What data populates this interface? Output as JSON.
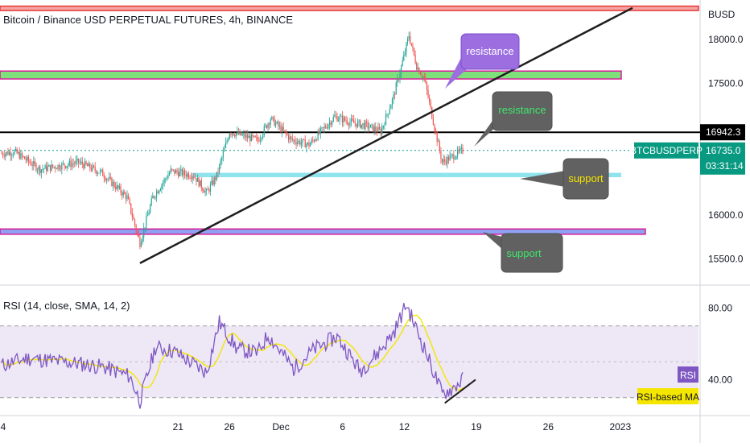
{
  "header": {
    "title": "Bitcoin / Binance USD PERPETUAL FUTURES, 4h, BINANCE"
  },
  "price_axis": {
    "currency": "BUSD",
    "ticks": [
      {
        "label": "18000.0",
        "value": 18000
      },
      {
        "label": "17500.0",
        "value": 17500
      },
      {
        "label": "16000.0",
        "value": 16000
      },
      {
        "label": "15500.0",
        "value": 15500
      }
    ],
    "marker_line_label": "16942.3",
    "symbol_label": "BTCBUSDPERP",
    "last_price_label": "16735.0",
    "countdown_label": "03:31:14"
  },
  "rsi_panel": {
    "title": "RSI (14, close, SMA, 14, 2)",
    "ticks": [
      {
        "label": "80.00",
        "value": 80
      },
      {
        "label": "40.00",
        "value": 40
      }
    ],
    "badge_rsi": "RSI",
    "badge_ma": "RSI-based MA"
  },
  "time_axis": {
    "labels": [
      {
        "label": "4",
        "index": 0
      },
      {
        "label": "21",
        "index": 102
      },
      {
        "label": "26",
        "index": 132
      },
      {
        "label": "Dec",
        "index": 162
      },
      {
        "label": "6",
        "index": 198
      },
      {
        "label": "12",
        "index": 234
      },
      {
        "label": "19",
        "index": 276
      },
      {
        "label": "26",
        "index": 318
      },
      {
        "label": "2023",
        "index": 360
      }
    ]
  },
  "annotations": {
    "callouts": [
      {
        "text": "resistance",
        "text_color": "#ffffff",
        "fill": "#9c6ee0"
      },
      {
        "text": "resistance",
        "text_color": "#3ee86a",
        "fill": "#616161"
      },
      {
        "text": "support",
        "text_color": "#f5e600",
        "fill": "#616161"
      },
      {
        "text": "support",
        "text_color": "#3ee86a",
        "fill": "#616161"
      }
    ]
  },
  "colors": {
    "up": "#26a69a",
    "down": "#ef5350",
    "resistance_zone": "#f5a3a3",
    "green_zone": "#7ee07a",
    "support_zone_cyan": "#8fe3ec",
    "support_zone_blue": "#8fa0f0",
    "rsi_line": "#7e57c2",
    "rsi_ma": "#f5e600",
    "last_price_bg": "#089981"
  },
  "chart_data": [
    {
      "type": "candlestick",
      "timeframe": "4h",
      "y_unit": "BUSD",
      "ylim": [
        15200,
        18450
      ],
      "levels": {
        "resistance_zone_top": [
          18330,
          18380
        ],
        "resistance_zone_mid": [
          17550,
          17640
        ],
        "horizontal_resistance": 16942.3,
        "support_zone_upper": [
          16430,
          16480
        ],
        "support_zone_lower": [
          15780,
          15840
        ],
        "last_price": 16735.0
      },
      "trendline": {
        "from": {
          "x": 0.1,
          "y": 15450
        },
        "to": {
          "x": 0.9,
          "y": 18360
        }
      },
      "segments": [
        {
          "from": 0,
          "to": 10,
          "start": 16700,
          "end": 16720
        },
        {
          "from": 10,
          "to": 30,
          "start": 16720,
          "end": 16520
        },
        {
          "from": 30,
          "to": 60,
          "start": 16520,
          "end": 16600
        },
        {
          "from": 60,
          "to": 78,
          "start": 16600,
          "end": 16480
        },
        {
          "from": 78,
          "to": 98,
          "start": 16480,
          "end": 16200
        },
        {
          "from": 98,
          "to": 108,
          "start": 16200,
          "end": 15680
        },
        {
          "from": 108,
          "to": 118,
          "start": 15680,
          "end": 16200
        },
        {
          "from": 118,
          "to": 132,
          "start": 16200,
          "end": 16500
        },
        {
          "from": 132,
          "to": 150,
          "start": 16500,
          "end": 16450
        },
        {
          "from": 150,
          "to": 160,
          "start": 16450,
          "end": 16250
        },
        {
          "from": 160,
          "to": 168,
          "start": 16250,
          "end": 16450
        },
        {
          "from": 168,
          "to": 178,
          "start": 16450,
          "end": 16950
        },
        {
          "from": 178,
          "to": 200,
          "start": 16950,
          "end": 16850
        },
        {
          "from": 200,
          "to": 210,
          "start": 16850,
          "end": 17100
        },
        {
          "from": 210,
          "to": 226,
          "start": 17100,
          "end": 16860
        },
        {
          "from": 226,
          "to": 240,
          "start": 16860,
          "end": 16800
        },
        {
          "from": 240,
          "to": 260,
          "start": 16800,
          "end": 17120
        },
        {
          "from": 260,
          "to": 274,
          "start": 17120,
          "end": 17050
        },
        {
          "from": 274,
          "to": 284,
          "start": 17050,
          "end": 17020
        },
        {
          "from": 284,
          "to": 296,
          "start": 17020,
          "end": 16950
        },
        {
          "from": 296,
          "to": 306,
          "start": 16950,
          "end": 17350
        },
        {
          "from": 306,
          "to": 314,
          "start": 17350,
          "end": 17800
        },
        {
          "from": 314,
          "to": 318,
          "start": 17800,
          "end": 18050
        },
        {
          "from": 318,
          "to": 324,
          "start": 18050,
          "end": 17700
        },
        {
          "from": 324,
          "to": 330,
          "start": 17700,
          "end": 17550
        },
        {
          "from": 330,
          "to": 338,
          "start": 17550,
          "end": 17000
        },
        {
          "from": 338,
          "to": 344,
          "start": 17000,
          "end": 16600
        },
        {
          "from": 344,
          "to": 360,
          "start": 16600,
          "end": 16735
        }
      ]
    },
    {
      "type": "line",
      "name": "RSI",
      "ylim": [
        20,
        90
      ],
      "bands": {
        "upper": 70,
        "middle": 50,
        "lower": 30
      },
      "segments": [
        {
          "from": 0,
          "to": 20,
          "start": 48,
          "end": 52
        },
        {
          "from": 20,
          "to": 60,
          "start": 52,
          "end": 49
        },
        {
          "from": 60,
          "to": 80,
          "start": 49,
          "end": 47
        },
        {
          "from": 80,
          "to": 100,
          "start": 47,
          "end": 42
        },
        {
          "from": 100,
          "to": 108,
          "start": 42,
          "end": 28
        },
        {
          "from": 108,
          "to": 120,
          "start": 28,
          "end": 58
        },
        {
          "from": 120,
          "to": 134,
          "start": 58,
          "end": 56
        },
        {
          "from": 134,
          "to": 160,
          "start": 56,
          "end": 44
        },
        {
          "from": 160,
          "to": 170,
          "start": 44,
          "end": 72
        },
        {
          "from": 170,
          "to": 184,
          "start": 72,
          "end": 57
        },
        {
          "from": 184,
          "to": 200,
          "start": 57,
          "end": 55
        },
        {
          "from": 200,
          "to": 208,
          "start": 55,
          "end": 65
        },
        {
          "from": 208,
          "to": 228,
          "start": 65,
          "end": 46
        },
        {
          "from": 228,
          "to": 244,
          "start": 46,
          "end": 57
        },
        {
          "from": 244,
          "to": 262,
          "start": 57,
          "end": 64
        },
        {
          "from": 262,
          "to": 280,
          "start": 64,
          "end": 45
        },
        {
          "from": 280,
          "to": 294,
          "start": 45,
          "end": 55
        },
        {
          "from": 294,
          "to": 306,
          "start": 55,
          "end": 66
        },
        {
          "from": 306,
          "to": 316,
          "start": 66,
          "end": 82
        },
        {
          "from": 316,
          "to": 332,
          "start": 82,
          "end": 54
        },
        {
          "from": 332,
          "to": 344,
          "start": 54,
          "end": 32
        },
        {
          "from": 344,
          "to": 352,
          "start": 32,
          "end": 35
        },
        {
          "from": 352,
          "to": 360,
          "start": 35,
          "end": 40
        }
      ],
      "divergence_line": {
        "from": {
          "x": 346,
          "y": 27
        },
        "to": {
          "x": 370,
          "y": 40
        }
      }
    }
  ]
}
